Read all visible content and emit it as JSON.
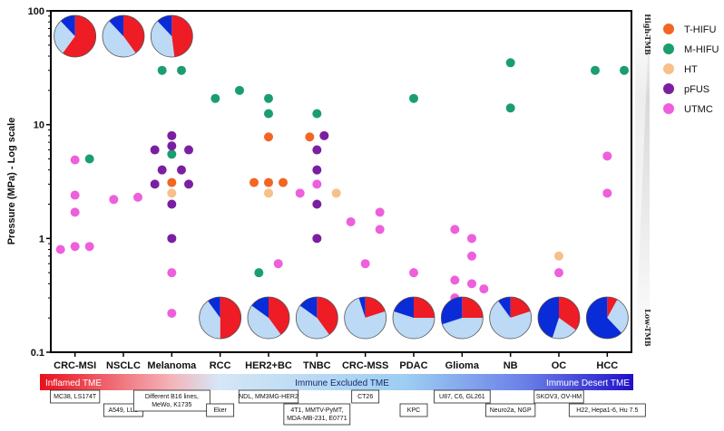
{
  "chart_data": {
    "type": "scatter",
    "title": "",
    "ylabel": "Pressure (MPa) - Log scale",
    "yscale": "log",
    "ylim": [
      0.1,
      100
    ],
    "y_ticks": [
      {
        "value": 0.1,
        "label": "0.1"
      },
      {
        "value": 1,
        "label": "1"
      },
      {
        "value": 10,
        "label": "10"
      },
      {
        "value": 100,
        "label": "100"
      }
    ],
    "categories": [
      "CRC-MSI",
      "NSCLC",
      "Melanoma",
      "RCC",
      "HER2+BC",
      "TNBC",
      "CRC-MSS",
      "PDAC",
      "Glioma",
      "NB",
      "OC",
      "HCC"
    ],
    "colors": {
      "T-HIFU": "#f26522",
      "M-HIFU": "#1a9e6e",
      "HT": "#f7c08a",
      "pFUS": "#7b1fa2",
      "UTMC": "#ee5fdc",
      "pie_red": "#ee1c25",
      "pie_blue": "#0a2bd8",
      "pie_light": "#bcd9f5"
    },
    "series": [
      {
        "name": "T-HIFU",
        "points": [
          {
            "category": "Melanoma",
            "offset": 0,
            "y": 3.1
          },
          {
            "category": "HER2+BC",
            "offset": -0.3,
            "y": 3.1
          },
          {
            "category": "HER2+BC",
            "offset": 0,
            "y": 7.8
          },
          {
            "category": "HER2+BC",
            "offset": 0,
            "y": 3.1
          },
          {
            "category": "HER2+BC",
            "offset": 0.3,
            "y": 3.1
          },
          {
            "category": "TNBC",
            "offset": -0.15,
            "y": 7.8
          }
        ]
      },
      {
        "name": "M-HIFU",
        "points": [
          {
            "category": "CRC-MSI",
            "offset": 0.3,
            "y": 5.0
          },
          {
            "category": "Melanoma",
            "offset": -0.2,
            "y": 30
          },
          {
            "category": "Melanoma",
            "offset": 0.2,
            "y": 30
          },
          {
            "category": "Melanoma",
            "offset": 0,
            "y": 5.5
          },
          {
            "category": "RCC",
            "offset": -0.1,
            "y": 17
          },
          {
            "category": "RCC",
            "offset": 0.4,
            "y": 20
          },
          {
            "category": "HER2+BC",
            "offset": 0,
            "y": 17
          },
          {
            "category": "HER2+BC",
            "offset": 0,
            "y": 12.5
          },
          {
            "category": "HER2+BC",
            "offset": -0.2,
            "y": 0.5
          },
          {
            "category": "TNBC",
            "offset": 0,
            "y": 12.5
          },
          {
            "category": "PDAC",
            "offset": 0,
            "y": 17
          },
          {
            "category": "NB",
            "offset": 0,
            "y": 35
          },
          {
            "category": "NB",
            "offset": 0,
            "y": 14
          },
          {
            "category": "HCC",
            "offset": -0.25,
            "y": 30
          },
          {
            "category": "HCC",
            "offset": 0.35,
            "y": 30
          }
        ]
      },
      {
        "name": "HT",
        "points": [
          {
            "category": "Melanoma",
            "offset": 0,
            "y": 2.5
          },
          {
            "category": "HER2+BC",
            "offset": 0,
            "y": 2.5
          },
          {
            "category": "TNBC",
            "offset": 0.4,
            "y": 2.5
          },
          {
            "category": "OC",
            "offset": 0,
            "y": 0.7
          }
        ]
      },
      {
        "name": "pFUS",
        "points": [
          {
            "category": "Melanoma",
            "offset": -0.35,
            "y": 6
          },
          {
            "category": "Melanoma",
            "offset": 0,
            "y": 8
          },
          {
            "category": "Melanoma",
            "offset": 0,
            "y": 6.5
          },
          {
            "category": "Melanoma",
            "offset": 0.35,
            "y": 6
          },
          {
            "category": "Melanoma",
            "offset": -0.2,
            "y": 4
          },
          {
            "category": "Melanoma",
            "offset": 0.2,
            "y": 4
          },
          {
            "category": "Melanoma",
            "offset": -0.35,
            "y": 3
          },
          {
            "category": "Melanoma",
            "offset": 0.35,
            "y": 3
          },
          {
            "category": "Melanoma",
            "offset": 0,
            "y": 2.0
          },
          {
            "category": "Melanoma",
            "offset": 0,
            "y": 1.0
          },
          {
            "category": "TNBC",
            "offset": 0.15,
            "y": 8
          },
          {
            "category": "TNBC",
            "offset": 0,
            "y": 6
          },
          {
            "category": "TNBC",
            "offset": 0,
            "y": 4
          },
          {
            "category": "TNBC",
            "offset": 0,
            "y": 2.0
          },
          {
            "category": "TNBC",
            "offset": 0,
            "y": 1.0
          }
        ]
      },
      {
        "name": "UTMC",
        "points": [
          {
            "category": "CRC-MSI",
            "offset": -0.3,
            "y": 0.8
          },
          {
            "category": "CRC-MSI",
            "offset": 0,
            "y": 0.85
          },
          {
            "category": "CRC-MSI",
            "offset": 0.3,
            "y": 0.85
          },
          {
            "category": "CRC-MSI",
            "offset": 0,
            "y": 1.7
          },
          {
            "category": "CRC-MSI",
            "offset": 0,
            "y": 2.4
          },
          {
            "category": "CRC-MSI",
            "offset": 0,
            "y": 4.9
          },
          {
            "category": "NSCLC",
            "offset": -0.2,
            "y": 2.2
          },
          {
            "category": "NSCLC",
            "offset": 0.3,
            "y": 2.3
          },
          {
            "category": "Melanoma",
            "offset": 0,
            "y": 0.5
          },
          {
            "category": "Melanoma",
            "offset": 0,
            "y": 0.22
          },
          {
            "category": "HER2+BC",
            "offset": 0.2,
            "y": 0.6
          },
          {
            "category": "TNBC",
            "offset": -0.35,
            "y": 2.5
          },
          {
            "category": "TNBC",
            "offset": 0,
            "y": 3.0
          },
          {
            "category": "CRC-MSS",
            "offset": -0.3,
            "y": 1.4
          },
          {
            "category": "CRC-MSS",
            "offset": 0.3,
            "y": 1.7
          },
          {
            "category": "CRC-MSS",
            "offset": 0.3,
            "y": 1.2
          },
          {
            "category": "CRC-MSS",
            "offset": 0,
            "y": 0.6
          },
          {
            "category": "PDAC",
            "offset": 0,
            "y": 0.5
          },
          {
            "category": "Glioma",
            "offset": -0.15,
            "y": 1.2
          },
          {
            "category": "Glioma",
            "offset": 0.2,
            "y": 1.0
          },
          {
            "category": "Glioma",
            "offset": 0.2,
            "y": 0.7
          },
          {
            "category": "Glioma",
            "offset": -0.15,
            "y": 0.43
          },
          {
            "category": "Glioma",
            "offset": 0.2,
            "y": 0.4
          },
          {
            "category": "Glioma",
            "offset": 0.45,
            "y": 0.36
          },
          {
            "category": "Glioma",
            "offset": -0.15,
            "y": 0.3
          },
          {
            "category": "OC",
            "offset": 0,
            "y": 0.5
          },
          {
            "category": "HCC",
            "offset": 0,
            "y": 5.3
          },
          {
            "category": "HCC",
            "offset": 0,
            "y": 2.5
          }
        ]
      }
    ],
    "legend": {
      "position": "right",
      "entries": [
        "T-HIFU",
        "M-HIFU",
        "HT",
        "pFUS",
        "UTMC"
      ]
    },
    "pies": [
      {
        "category": "CRC-MSI",
        "placement": "top",
        "slices": [
          {
            "kind": "red",
            "value": 0.6
          },
          {
            "kind": "light",
            "value": 0.28
          },
          {
            "kind": "blue",
            "value": 0.12
          }
        ]
      },
      {
        "category": "NSCLC",
        "placement": "top",
        "slices": [
          {
            "kind": "red",
            "value": 0.4
          },
          {
            "kind": "light",
            "value": 0.48
          },
          {
            "kind": "blue",
            "value": 0.12
          }
        ]
      },
      {
        "category": "Melanoma",
        "placement": "top",
        "slices": [
          {
            "kind": "red",
            "value": 0.48
          },
          {
            "kind": "light",
            "value": 0.4
          },
          {
            "kind": "blue",
            "value": 0.12
          }
        ]
      },
      {
        "category": "RCC",
        "placement": "bottom",
        "slices": [
          {
            "kind": "red",
            "value": 0.5
          },
          {
            "kind": "light",
            "value": 0.4
          },
          {
            "kind": "blue",
            "value": 0.1
          }
        ]
      },
      {
        "category": "HER2+BC",
        "placement": "bottom",
        "slices": [
          {
            "kind": "red",
            "value": 0.4
          },
          {
            "kind": "light",
            "value": 0.45
          },
          {
            "kind": "blue",
            "value": 0.15
          }
        ]
      },
      {
        "category": "TNBC",
        "placement": "bottom",
        "slices": [
          {
            "kind": "red",
            "value": 0.4
          },
          {
            "kind": "light",
            "value": 0.45
          },
          {
            "kind": "blue",
            "value": 0.15
          }
        ]
      },
      {
        "category": "CRC-MSS",
        "placement": "bottom",
        "slices": [
          {
            "kind": "red",
            "value": 0.2
          },
          {
            "kind": "light",
            "value": 0.75
          },
          {
            "kind": "blue",
            "value": 0.05
          }
        ]
      },
      {
        "category": "PDAC",
        "placement": "bottom",
        "slices": [
          {
            "kind": "red",
            "value": 0.25
          },
          {
            "kind": "light",
            "value": 0.55
          },
          {
            "kind": "blue",
            "value": 0.2
          }
        ]
      },
      {
        "category": "Glioma",
        "placement": "bottom",
        "slices": [
          {
            "kind": "red",
            "value": 0.25
          },
          {
            "kind": "light",
            "value": 0.45
          },
          {
            "kind": "blue",
            "value": 0.3
          }
        ]
      },
      {
        "category": "NB",
        "placement": "bottom",
        "slices": [
          {
            "kind": "red",
            "value": 0.2
          },
          {
            "kind": "light",
            "value": 0.7
          },
          {
            "kind": "blue",
            "value": 0.1
          }
        ]
      },
      {
        "category": "OC",
        "placement": "bottom",
        "slices": [
          {
            "kind": "red",
            "value": 0.35
          },
          {
            "kind": "light",
            "value": 0.2
          },
          {
            "kind": "blue",
            "value": 0.45
          }
        ]
      },
      {
        "category": "HCC",
        "placement": "bottom",
        "slices": [
          {
            "kind": "red",
            "value": 0.08
          },
          {
            "kind": "light",
            "value": 0.3
          },
          {
            "kind": "blue",
            "value": 0.62
          }
        ]
      }
    ],
    "tmb_labels": {
      "high": "High-TMB",
      "low": "Low-TMB"
    },
    "tme_band": {
      "left": "Inflamed TME",
      "middle": "Immune Excluded TME",
      "right": "Immune Desert TME"
    },
    "model_boxes": [
      {
        "row": "upper",
        "category_span": [
          "CRC-MSI",
          "CRC-MSI"
        ],
        "lines": [
          "MC38, LS174T"
        ]
      },
      {
        "row": "lower",
        "category_span": [
          "NSCLC",
          "NSCLC"
        ],
        "lines": [
          "A549, LLC"
        ]
      },
      {
        "row": "upper",
        "category_span": [
          "Melanoma",
          "Melanoma"
        ],
        "lines": [
          "Different B16 lines,",
          "MeWo, K1735"
        ]
      },
      {
        "row": "lower",
        "category_span": [
          "RCC",
          "RCC"
        ],
        "lines": [
          "Eker"
        ]
      },
      {
        "row": "upper",
        "category_span": [
          "HER2+BC",
          "HER2+BC"
        ],
        "lines": [
          "NDL, MM3MG-HER2"
        ]
      },
      {
        "row": "lower",
        "category_span": [
          "TNBC",
          "TNBC"
        ],
        "lines": [
          "4T1, MMTV-PyMT,",
          "MDA-MB-231, E0771"
        ]
      },
      {
        "row": "upper",
        "category_span": [
          "CRC-MSS",
          "CRC-MSS"
        ],
        "lines": [
          "CT26"
        ]
      },
      {
        "row": "lower",
        "category_span": [
          "PDAC",
          "PDAC"
        ],
        "lines": [
          "KPC"
        ]
      },
      {
        "row": "upper",
        "category_span": [
          "Glioma",
          "Glioma"
        ],
        "lines": [
          "U87, C6, GL261"
        ]
      },
      {
        "row": "lower",
        "category_span": [
          "NB",
          "NB"
        ],
        "lines": [
          "Neuro2a, NGP"
        ]
      },
      {
        "row": "upper",
        "category_span": [
          "OC",
          "OC"
        ],
        "lines": [
          "SKOV3, OV-HM"
        ]
      },
      {
        "row": "lower",
        "category_span": [
          "HCC",
          "HCC"
        ],
        "lines": [
          "H22, Hepa1-6, Hu 7.5"
        ]
      }
    ]
  }
}
